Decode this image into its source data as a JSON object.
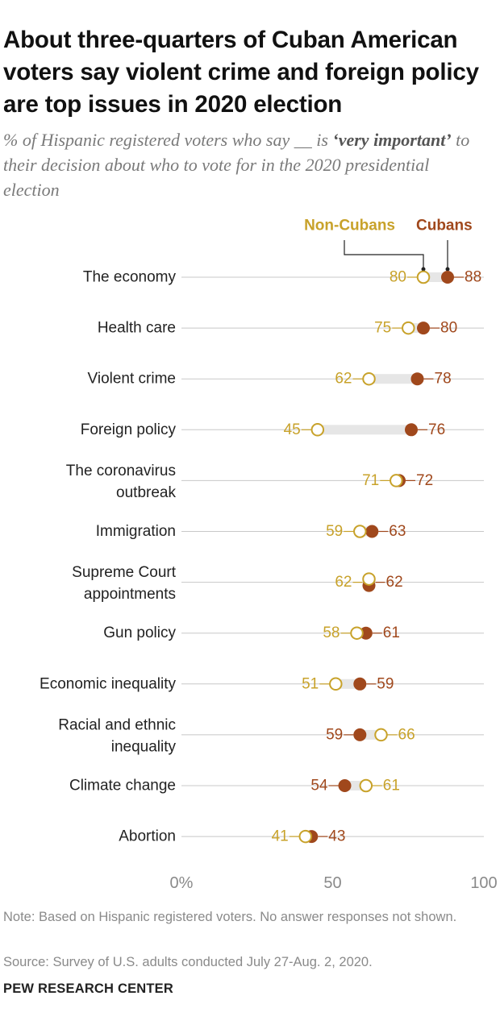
{
  "title": "About three-quarters of Cuban American voters say violent crime and foreign policy are top issues in 2020 election",
  "subtitle": {
    "before": "% of Hispanic registered voters who say __ is ",
    "emphasis": "‘very important’",
    "after": " to their decision about who to vote for in the 2020 presidential election"
  },
  "chart_data": {
    "type": "dot",
    "xlim": [
      0,
      100
    ],
    "ticks": [
      0,
      50,
      100
    ],
    "tick_labels": [
      "0%",
      "50",
      "100"
    ],
    "legend_placement": "top, above first row",
    "series": [
      {
        "name": "Non-Cubans",
        "color": "#c8a22a",
        "marker": "hollow",
        "values": [
          80,
          75,
          62,
          45,
          71,
          59,
          62,
          58,
          51,
          66,
          61,
          41
        ]
      },
      {
        "name": "Cubans",
        "color": "#a0481c",
        "marker": "filled",
        "values": [
          88,
          80,
          78,
          76,
          72,
          63,
          62,
          61,
          59,
          59,
          54,
          43
        ]
      }
    ],
    "categories": [
      [
        "The economy"
      ],
      [
        "Health care"
      ],
      [
        "Violent crime"
      ],
      [
        "Foreign policy"
      ],
      [
        "The coronavirus",
        "outbreak"
      ],
      [
        "Immigration"
      ],
      [
        "Supreme Court",
        "appointments"
      ],
      [
        "Gun policy"
      ],
      [
        "Economic inequality"
      ],
      [
        "Racial and ethnic",
        "inequality"
      ],
      [
        "Climate change"
      ],
      [
        "Abortion"
      ]
    ]
  },
  "colors": {
    "cubans": "#a0481c",
    "non_cubans": "#c8a22a",
    "gridline": "#c8c8c8",
    "range_bar": "#e6e6e6"
  },
  "note": "Note: Based on Hispanic registered voters. No answer responses not shown.",
  "source": "Source: Survey of U.S. adults conducted July 27-Aug. 2, 2020.",
  "brand": "PEW RESEARCH CENTER"
}
